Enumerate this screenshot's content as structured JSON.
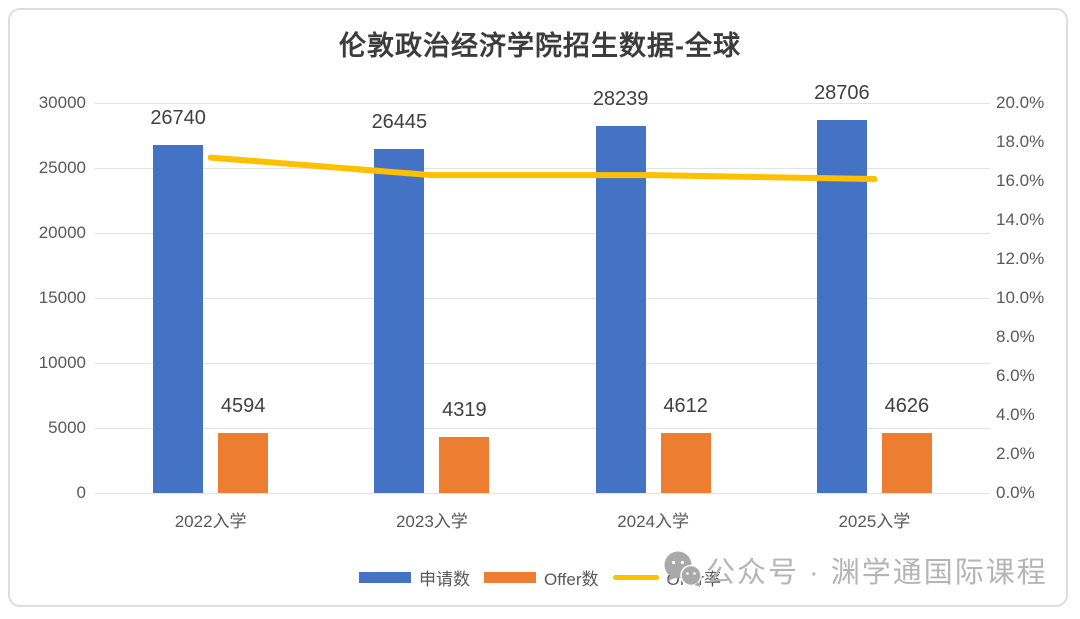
{
  "title": "伦敦政治经济学院招生数据-全球",
  "watermark": {
    "text": "公众号 · 渊学通国际课程",
    "icon": "wechat-icon",
    "color": "#b0b0b0"
  },
  "colors": {
    "applications": "#4472C4",
    "offers": "#ED7D31",
    "offer_rate": "#FFC000",
    "axis_text": "#595959",
    "data_label": "#404040",
    "gridline": "#e3e3e3"
  },
  "chart_data": {
    "type": "bar",
    "subtype": "combo-bar-line",
    "title": "伦敦政治经济学院招生数据-全球",
    "categories": [
      "2022入学",
      "2023入学",
      "2024入学",
      "2025入学"
    ],
    "series": [
      {
        "name": "申请数",
        "type": "bar",
        "axis": "left",
        "color": "#4472C4",
        "values": [
          26740,
          26445,
          28239,
          28706
        ],
        "data_labels": [
          "26740",
          "26445",
          "28239",
          "28706"
        ]
      },
      {
        "name": "Offer数",
        "type": "bar",
        "axis": "left",
        "color": "#ED7D31",
        "values": [
          4594,
          4319,
          4612,
          4626
        ],
        "data_labels": [
          "4594",
          "4319",
          "4612",
          "4626"
        ]
      },
      {
        "name": "Offer率",
        "type": "line",
        "axis": "right",
        "color": "#FFC000",
        "values": [
          17.2,
          16.3,
          16.3,
          16.1
        ],
        "unit": "%"
      }
    ],
    "left_axis": {
      "min": 0,
      "max": 30000,
      "step": 5000,
      "ticks": [
        "30000",
        "25000",
        "20000",
        "15000",
        "10000",
        "5000",
        "0"
      ]
    },
    "right_axis": {
      "min": 0,
      "max": 20,
      "step": 2,
      "ticks": [
        "20.0%",
        "18.0%",
        "16.0%",
        "14.0%",
        "12.0%",
        "10.0%",
        "8.0%",
        "6.0%",
        "4.0%",
        "2.0%",
        "0.0%"
      ]
    },
    "grid": true,
    "legend_position": "bottom",
    "xlabel": "",
    "ylabel": ""
  }
}
